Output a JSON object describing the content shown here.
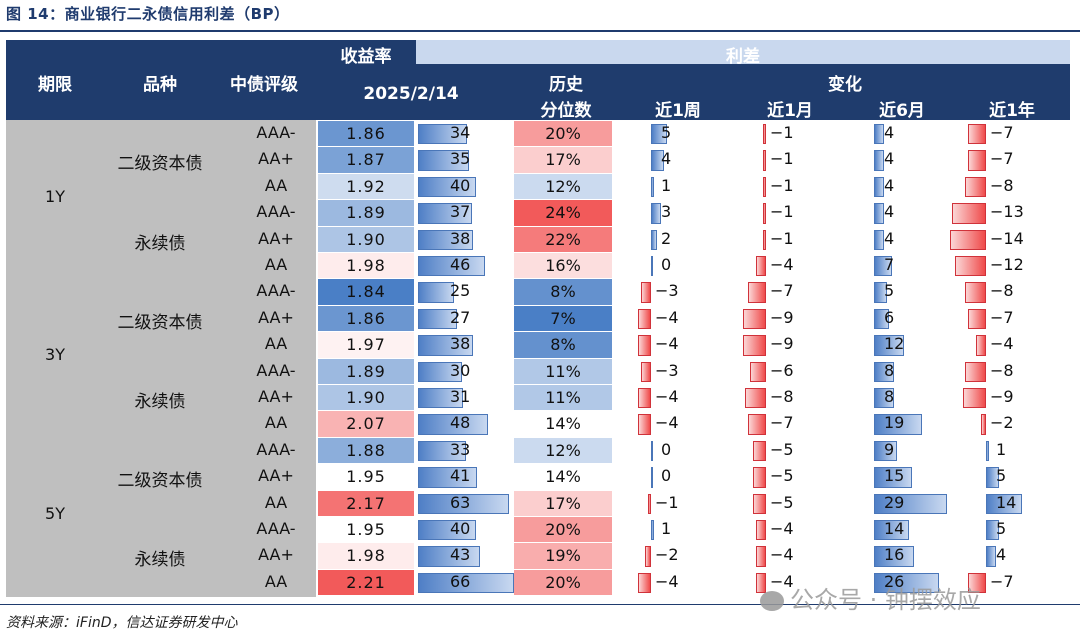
{
  "title": "图 14：商业银行二永债信用利差（BP）",
  "header": {
    "yield_group": "收益率",
    "spread_group": "利差",
    "col_term": "期限",
    "col_type": "品种",
    "col_rating": "中债评级",
    "col_date": "2025/2/14",
    "col_hist_1": "历史",
    "col_hist_2": "分位数",
    "col_change": "变化",
    "col_1w": "近1周",
    "col_1m": "近1月",
    "col_6m": "近6月",
    "col_1y": "近1年"
  },
  "terms": [
    "1Y",
    "3Y",
    "5Y"
  ],
  "types": [
    "二级资本债",
    "永续债",
    "二级资本债",
    "永续债",
    "二级资本债",
    "永续债"
  ],
  "rows": [
    {
      "rating": "AAA-",
      "yield": "1.86",
      "spread": 34,
      "pct": "20%",
      "w1": 5,
      "m1": -1,
      "m6": 4,
      "y1": -7
    },
    {
      "rating": "AA+",
      "yield": "1.87",
      "spread": 35,
      "pct": "17%",
      "w1": 4,
      "m1": -1,
      "m6": 4,
      "y1": -7
    },
    {
      "rating": "AA",
      "yield": "1.92",
      "spread": 40,
      "pct": "12%",
      "w1": 1,
      "m1": -1,
      "m6": 4,
      "y1": -8
    },
    {
      "rating": "AAA-",
      "yield": "1.89",
      "spread": 37,
      "pct": "24%",
      "w1": 3,
      "m1": -1,
      "m6": 4,
      "y1": -13
    },
    {
      "rating": "AA+",
      "yield": "1.90",
      "spread": 38,
      "pct": "22%",
      "w1": 2,
      "m1": -1,
      "m6": 4,
      "y1": -14
    },
    {
      "rating": "AA",
      "yield": "1.98",
      "spread": 46,
      "pct": "16%",
      "w1": 0,
      "m1": -4,
      "m6": 7,
      "y1": -12
    },
    {
      "rating": "AAA-",
      "yield": "1.84",
      "spread": 25,
      "pct": "8%",
      "w1": -3,
      "m1": -7,
      "m6": 5,
      "y1": -8
    },
    {
      "rating": "AA+",
      "yield": "1.86",
      "spread": 27,
      "pct": "7%",
      "w1": -4,
      "m1": -9,
      "m6": 6,
      "y1": -7
    },
    {
      "rating": "AA",
      "yield": "1.97",
      "spread": 38,
      "pct": "8%",
      "w1": -4,
      "m1": -9,
      "m6": 12,
      "y1": -4
    },
    {
      "rating": "AAA-",
      "yield": "1.89",
      "spread": 30,
      "pct": "11%",
      "w1": -3,
      "m1": -6,
      "m6": 8,
      "y1": -8
    },
    {
      "rating": "AA+",
      "yield": "1.90",
      "spread": 31,
      "pct": "11%",
      "w1": -4,
      "m1": -8,
      "m6": 8,
      "y1": -9
    },
    {
      "rating": "AA",
      "yield": "2.07",
      "spread": 48,
      "pct": "14%",
      "w1": -4,
      "m1": -7,
      "m6": 19,
      "y1": -2
    },
    {
      "rating": "AAA-",
      "yield": "1.88",
      "spread": 33,
      "pct": "12%",
      "w1": 0,
      "m1": -5,
      "m6": 9,
      "y1": 1
    },
    {
      "rating": "AA+",
      "yield": "1.95",
      "spread": 41,
      "pct": "14%",
      "w1": 0,
      "m1": -5,
      "m6": 15,
      "y1": 5
    },
    {
      "rating": "AA",
      "yield": "2.17",
      "spread": 63,
      "pct": "17%",
      "w1": -1,
      "m1": -5,
      "m6": 29,
      "y1": 14
    },
    {
      "rating": "AAA-",
      "yield": "1.95",
      "spread": 40,
      "pct": "20%",
      "w1": 1,
      "m1": -4,
      "m6": 14,
      "y1": 5
    },
    {
      "rating": "AA+",
      "yield": "1.98",
      "spread": 43,
      "pct": "19%",
      "w1": -2,
      "m1": -4,
      "m6": 16,
      "y1": 4
    },
    {
      "rating": "AA",
      "yield": "2.21",
      "spread": 66,
      "pct": "20%",
      "w1": -4,
      "m1": -4,
      "m6": 26,
      "y1": -7
    }
  ],
  "colors": {
    "header": "#1f3c6d",
    "yield_low": "#4a7fc6",
    "yield_mid": "#ffffff",
    "yield_high": "#f25a5a",
    "bar_blue": "#4f7fc6",
    "bar_red": "#ef4a4a"
  },
  "footer": "资料来源：iFinD，信达证券研发中心",
  "watermark": "公众号 · 钟摆效应"
}
